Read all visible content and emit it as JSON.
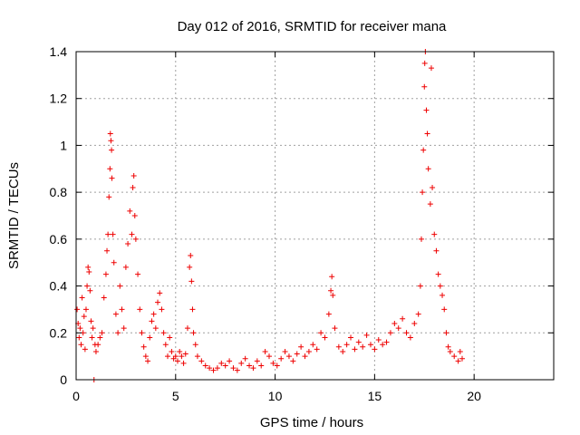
{
  "chart_data": {
    "type": "scatter",
    "title": "Day 012 of 2016, SRMTID for receiver mana",
    "xlabel": "GPS time / hours",
    "ylabel": "SRMTID / TECUs",
    "xlim": [
      0,
      24
    ],
    "ylim": [
      0,
      1.4
    ],
    "xticks": [
      0,
      5,
      10,
      15,
      20
    ],
    "xtick_labels": [
      "0",
      "5",
      "10",
      "15",
      "20"
    ],
    "yticks": [
      0,
      0.2,
      0.4,
      0.6,
      0.8,
      1.0,
      1.2,
      1.4
    ],
    "ytick_labels": [
      "0",
      "0.2",
      "0.4",
      "0.6",
      "0.8",
      "1",
      "1.2",
      "1.4"
    ],
    "grid": true,
    "marker": "plus",
    "color": "#ee0000",
    "series": [
      {
        "name": "SRMTID",
        "points": [
          [
            0.05,
            0.3
          ],
          [
            0.1,
            0.24
          ],
          [
            0.15,
            0.18
          ],
          [
            0.2,
            0.22
          ],
          [
            0.25,
            0.15
          ],
          [
            0.3,
            0.35
          ],
          [
            0.35,
            0.2
          ],
          [
            0.4,
            0.27
          ],
          [
            0.45,
            0.13
          ],
          [
            0.5,
            0.3
          ],
          [
            0.55,
            0.4
          ],
          [
            0.6,
            0.48
          ],
          [
            0.65,
            0.46
          ],
          [
            0.7,
            0.38
          ],
          [
            0.75,
            0.25
          ],
          [
            0.8,
            0.18
          ],
          [
            0.85,
            0.22
          ],
          [
            0.9,
            0.0
          ],
          [
            0.95,
            0.15
          ],
          [
            1.0,
            0.12
          ],
          [
            1.1,
            0.15
          ],
          [
            1.2,
            0.18
          ],
          [
            1.3,
            0.2
          ],
          [
            1.4,
            0.35
          ],
          [
            1.5,
            0.45
          ],
          [
            1.55,
            0.55
          ],
          [
            1.6,
            0.62
          ],
          [
            1.65,
            0.78
          ],
          [
            1.7,
            0.9
          ],
          [
            1.72,
            1.05
          ],
          [
            1.75,
            1.02
          ],
          [
            1.78,
            0.98
          ],
          [
            1.8,
            0.86
          ],
          [
            1.85,
            0.62
          ],
          [
            1.9,
            0.5
          ],
          [
            2.0,
            0.28
          ],
          [
            2.1,
            0.2
          ],
          [
            2.2,
            0.4
          ],
          [
            2.3,
            0.3
          ],
          [
            2.4,
            0.22
          ],
          [
            2.5,
            0.48
          ],
          [
            2.6,
            0.58
          ],
          [
            2.7,
            0.72
          ],
          [
            2.8,
            0.62
          ],
          [
            2.85,
            0.82
          ],
          [
            2.9,
            0.87
          ],
          [
            2.95,
            0.7
          ],
          [
            3.0,
            0.6
          ],
          [
            3.1,
            0.45
          ],
          [
            3.2,
            0.3
          ],
          [
            3.3,
            0.2
          ],
          [
            3.4,
            0.14
          ],
          [
            3.5,
            0.1
          ],
          [
            3.6,
            0.08
          ],
          [
            3.7,
            0.18
          ],
          [
            3.8,
            0.25
          ],
          [
            3.9,
            0.28
          ],
          [
            4.0,
            0.22
          ],
          [
            4.1,
            0.33
          ],
          [
            4.2,
            0.37
          ],
          [
            4.3,
            0.3
          ],
          [
            4.4,
            0.2
          ],
          [
            4.5,
            0.15
          ],
          [
            4.6,
            0.1
          ],
          [
            4.7,
            0.18
          ],
          [
            4.8,
            0.12
          ],
          [
            4.9,
            0.09
          ],
          [
            5.0,
            0.1
          ],
          [
            5.1,
            0.08
          ],
          [
            5.2,
            0.12
          ],
          [
            5.3,
            0.1
          ],
          [
            5.4,
            0.07
          ],
          [
            5.5,
            0.11
          ],
          [
            5.6,
            0.22
          ],
          [
            5.7,
            0.48
          ],
          [
            5.75,
            0.53
          ],
          [
            5.8,
            0.42
          ],
          [
            5.85,
            0.3
          ],
          [
            5.9,
            0.2
          ],
          [
            6.0,
            0.15
          ],
          [
            6.1,
            0.1
          ],
          [
            6.3,
            0.08
          ],
          [
            6.5,
            0.06
          ],
          [
            6.7,
            0.05
          ],
          [
            6.9,
            0.04
          ],
          [
            7.1,
            0.05
          ],
          [
            7.3,
            0.07
          ],
          [
            7.5,
            0.06
          ],
          [
            7.7,
            0.08
          ],
          [
            7.9,
            0.05
          ],
          [
            8.1,
            0.04
          ],
          [
            8.3,
            0.07
          ],
          [
            8.5,
            0.09
          ],
          [
            8.7,
            0.06
          ],
          [
            8.9,
            0.05
          ],
          [
            9.1,
            0.08
          ],
          [
            9.3,
            0.06
          ],
          [
            9.5,
            0.12
          ],
          [
            9.7,
            0.1
          ],
          [
            9.9,
            0.07
          ],
          [
            10.1,
            0.06
          ],
          [
            10.3,
            0.09
          ],
          [
            10.5,
            0.12
          ],
          [
            10.7,
            0.1
          ],
          [
            10.9,
            0.08
          ],
          [
            11.1,
            0.11
          ],
          [
            11.3,
            0.14
          ],
          [
            11.5,
            0.1
          ],
          [
            11.7,
            0.12
          ],
          [
            11.9,
            0.15
          ],
          [
            12.1,
            0.13
          ],
          [
            12.3,
            0.2
          ],
          [
            12.5,
            0.18
          ],
          [
            12.7,
            0.28
          ],
          [
            12.8,
            0.38
          ],
          [
            12.85,
            0.44
          ],
          [
            12.9,
            0.36
          ],
          [
            13.0,
            0.22
          ],
          [
            13.2,
            0.14
          ],
          [
            13.4,
            0.12
          ],
          [
            13.6,
            0.15
          ],
          [
            13.8,
            0.18
          ],
          [
            14.0,
            0.13
          ],
          [
            14.2,
            0.16
          ],
          [
            14.4,
            0.14
          ],
          [
            14.6,
            0.19
          ],
          [
            14.8,
            0.15
          ],
          [
            15.0,
            0.13
          ],
          [
            15.2,
            0.17
          ],
          [
            15.4,
            0.15
          ],
          [
            15.6,
            0.16
          ],
          [
            15.8,
            0.2
          ],
          [
            16.0,
            0.24
          ],
          [
            16.2,
            0.22
          ],
          [
            16.4,
            0.26
          ],
          [
            16.6,
            0.2
          ],
          [
            16.8,
            0.18
          ],
          [
            17.0,
            0.24
          ],
          [
            17.2,
            0.28
          ],
          [
            17.3,
            0.4
          ],
          [
            17.35,
            0.6
          ],
          [
            17.4,
            0.8
          ],
          [
            17.45,
            0.98
          ],
          [
            17.5,
            1.25
          ],
          [
            17.52,
            1.35
          ],
          [
            17.55,
            1.4
          ],
          [
            17.6,
            1.15
          ],
          [
            17.65,
            1.05
          ],
          [
            17.7,
            0.9
          ],
          [
            17.8,
            0.75
          ],
          [
            17.85,
            1.33
          ],
          [
            17.9,
            0.82
          ],
          [
            18.0,
            0.62
          ],
          [
            18.1,
            0.55
          ],
          [
            18.2,
            0.45
          ],
          [
            18.3,
            0.4
          ],
          [
            18.4,
            0.36
          ],
          [
            18.5,
            0.3
          ],
          [
            18.6,
            0.2
          ],
          [
            18.7,
            0.14
          ],
          [
            18.8,
            0.12
          ],
          [
            19.0,
            0.1
          ],
          [
            19.2,
            0.08
          ],
          [
            19.3,
            0.12
          ],
          [
            19.4,
            0.09
          ]
        ]
      }
    ]
  }
}
